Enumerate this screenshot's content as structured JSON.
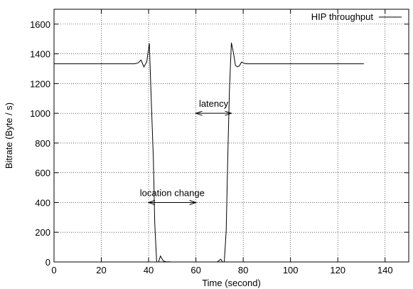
{
  "chart_data": {
    "type": "line",
    "title": "",
    "xlabel": "Time (second)",
    "ylabel": "Bitrate (Byte / s)",
    "xlim": [
      0,
      150
    ],
    "ylim": [
      0,
      1700
    ],
    "xticks": [
      0,
      20,
      40,
      60,
      80,
      100,
      120,
      140
    ],
    "yticks": [
      0,
      200,
      400,
      600,
      800,
      1000,
      1200,
      1400,
      1600
    ],
    "grid": true,
    "legend": "top-right",
    "series": [
      {
        "name": "HIP throughput",
        "color": "#000000",
        "x": [
          0,
          34,
          35.5,
          36.8,
          38,
          39.2,
          40.3,
          41,
          42,
          42.6,
          43.4,
          44.2,
          45,
          45.6,
          46.3,
          47.2,
          50,
          55,
          60,
          65,
          69,
          70.5,
          71.3,
          72,
          72.8,
          73.5,
          74.2,
          75,
          75.9,
          76.7,
          77.5,
          78.3,
          79.3,
          80.5,
          81.5,
          85,
          90,
          100,
          110,
          120,
          131
        ],
        "y": [
          1333,
          1333,
          1338,
          1358,
          1312,
          1345,
          1470,
          1140,
          700,
          260,
          0,
          0,
          40,
          22,
          6,
          2,
          0,
          0,
          0,
          0,
          0,
          18,
          0,
          0,
          210,
          720,
          1160,
          1475,
          1405,
          1322,
          1313,
          1318,
          1344,
          1336,
          1333,
          1333,
          1333,
          1333,
          1333,
          1333,
          1333
        ]
      }
    ],
    "annotations": [
      {
        "label": "latency",
        "x_from": 60,
        "x_to": 75,
        "y": 1000
      },
      {
        "label": "location change",
        "x_from": 40,
        "x_to": 60,
        "y": 400
      }
    ]
  }
}
